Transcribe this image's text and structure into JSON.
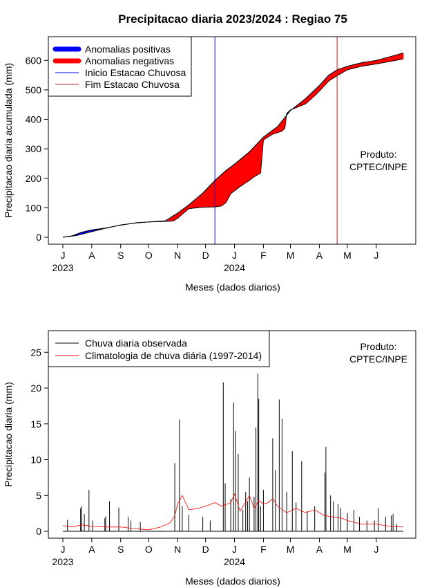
{
  "colors": {
    "positive": "#0000ff",
    "negative": "#ff0000",
    "start_line": "#0000ff",
    "end_line": "#b22222",
    "observed": "#000000",
    "climatology": "#ff0000"
  },
  "chart_data": [
    {
      "type": "area",
      "title": "Precipitacao diaria 2023/2024 : Regiao 75",
      "xlabel": "Meses (dados diarios)",
      "ylabel": "Precipitacao diaria acumulada (mm)",
      "x_unit": "days since 2023-07-01",
      "xlim": [
        0,
        365
      ],
      "ylim": [
        0,
        650
      ],
      "yticks": [
        0,
        100,
        200,
        300,
        400,
        500,
        600
      ],
      "month_ticks": [
        {
          "x": 0,
          "label": "J"
        },
        {
          "x": 31,
          "label": "A"
        },
        {
          "x": 62,
          "label": "S"
        },
        {
          "x": 92,
          "label": "O"
        },
        {
          "x": 123,
          "label": "N"
        },
        {
          "x": 153,
          "label": "D"
        },
        {
          "x": 184,
          "label": "J"
        },
        {
          "x": 215,
          "label": "F"
        },
        {
          "x": 244,
          "label": "M"
        },
        {
          "x": 275,
          "label": "A"
        },
        {
          "x": 305,
          "label": "M"
        },
        {
          "x": 336,
          "label": "J"
        }
      ],
      "year_labels": [
        {
          "x": 0,
          "label": "2023"
        },
        {
          "x": 184,
          "label": "2024"
        }
      ],
      "legend": [
        {
          "label": "Anomalias positivas",
          "style": "thick",
          "color": "#0000ff"
        },
        {
          "label": "Anomalias negativas",
          "style": "thick",
          "color": "#ff0000"
        },
        {
          "label": "Inicio Estacao Chuvosa",
          "style": "thin",
          "color": "#0000ff"
        },
        {
          "label": "Fim Estacao Chuvosa",
          "style": "thin",
          "color": "#b22222"
        }
      ],
      "legend_position": "top-left",
      "annotation": [
        "Produto:",
        "CPTEC/INPE"
      ],
      "vlines": [
        {
          "name": "start",
          "x": 163,
          "color": "#0000ff"
        },
        {
          "name": "end",
          "x": 294,
          "color": "#b22222"
        }
      ],
      "series": [
        {
          "name": "Climatologia acumulada",
          "points": [
            [
              0,
              0
            ],
            [
              15,
              6
            ],
            [
              31,
              19
            ],
            [
              45,
              30
            ],
            [
              62,
              42
            ],
            [
              80,
              49
            ],
            [
              92,
              52
            ],
            [
              110,
              56
            ],
            [
              123,
              82
            ],
            [
              135,
              110
            ],
            [
              150,
              150
            ],
            [
              163,
              193
            ],
            [
              175,
              227
            ],
            [
              184,
              248
            ],
            [
              200,
              290
            ],
            [
              215,
              340
            ],
            [
              230,
              375
            ],
            [
              244,
              430
            ],
            [
              260,
              470
            ],
            [
              275,
              515
            ],
            [
              285,
              550
            ],
            [
              294,
              568
            ],
            [
              305,
              580
            ],
            [
              320,
              592
            ],
            [
              336,
              600
            ],
            [
              350,
              612
            ],
            [
              365,
              625
            ]
          ]
        },
        {
          "name": "Observado acumulado",
          "points": [
            [
              0,
              0
            ],
            [
              10,
              5
            ],
            [
              20,
              17
            ],
            [
              31,
              25
            ],
            [
              45,
              31
            ],
            [
              62,
              41
            ],
            [
              80,
              50
            ],
            [
              92,
              52
            ],
            [
              110,
              54
            ],
            [
              118,
              55
            ],
            [
              123,
              64
            ],
            [
              128,
              78
            ],
            [
              135,
              97
            ],
            [
              150,
              102
            ],
            [
              163,
              103
            ],
            [
              170,
              106
            ],
            [
              175,
              118
            ],
            [
              180,
              148
            ],
            [
              190,
              172
            ],
            [
              200,
              193
            ],
            [
              205,
              205
            ],
            [
              212,
              218
            ],
            [
              215,
              330
            ],
            [
              225,
              350
            ],
            [
              235,
              360
            ],
            [
              238,
              370
            ],
            [
              240,
              420
            ],
            [
              244,
              432
            ],
            [
              260,
              452
            ],
            [
              270,
              480
            ],
            [
              275,
              496
            ],
            [
              285,
              530
            ],
            [
              294,
              548
            ],
            [
              305,
              568
            ],
            [
              320,
              580
            ],
            [
              336,
              588
            ],
            [
              350,
              596
            ],
            [
              365,
              605
            ]
          ]
        }
      ]
    },
    {
      "type": "line",
      "xlabel": "Meses (dados diarios)",
      "ylabel": "Precipitacao diaria (mm)",
      "x_unit": "days since 2023-07-01",
      "xlim": [
        0,
        365
      ],
      "ylim": [
        0,
        28
      ],
      "yticks": [
        0,
        5,
        10,
        15,
        20,
        25
      ],
      "month_ticks": [
        {
          "x": 0,
          "label": "J"
        },
        {
          "x": 31,
          "label": "A"
        },
        {
          "x": 62,
          "label": "S"
        },
        {
          "x": 92,
          "label": "O"
        },
        {
          "x": 123,
          "label": "N"
        },
        {
          "x": 153,
          "label": "D"
        },
        {
          "x": 184,
          "label": "J"
        },
        {
          "x": 215,
          "label": "F"
        },
        {
          "x": 244,
          "label": "M"
        },
        {
          "x": 275,
          "label": "A"
        },
        {
          "x": 305,
          "label": "M"
        },
        {
          "x": 336,
          "label": "J"
        }
      ],
      "year_labels": [
        {
          "x": 0,
          "label": "2023"
        },
        {
          "x": 184,
          "label": "2024"
        }
      ],
      "legend": [
        {
          "label": "Chuva diaria observada",
          "color": "#000000"
        },
        {
          "label": "Climatologia de chuva diária (1997-2014)",
          "color": "#ff0000"
        }
      ],
      "legend_position": "top-left",
      "annotation": [
        "Produto:",
        "CPTEC/INPE"
      ],
      "series": [
        {
          "name": "Chuva diaria observada",
          "style": "spikes",
          "points": [
            [
              5,
              1.6
            ],
            [
              19,
              3.2
            ],
            [
              20,
              3.5
            ],
            [
              23,
              2.4
            ],
            [
              28,
              5.8
            ],
            [
              32,
              1.5
            ],
            [
              45,
              1.8
            ],
            [
              46,
              2.1
            ],
            [
              50,
              4.2
            ],
            [
              60,
              3.3
            ],
            [
              70,
              2.0
            ],
            [
              73,
              1.5
            ],
            [
              83,
              1.3
            ],
            [
              120,
              9.5
            ],
            [
              125,
              15.6
            ],
            [
              128,
              3.5
            ],
            [
              135,
              2.3
            ],
            [
              150,
              2.0
            ],
            [
              158,
              1.5
            ],
            [
              172,
              20.8
            ],
            [
              174,
              6.7
            ],
            [
              180,
              4.5
            ],
            [
              183,
              18.0
            ],
            [
              185,
              14.0
            ],
            [
              188,
              10.8
            ],
            [
              193,
              3.0
            ],
            [
              196,
              5.5
            ],
            [
              198,
              4.2
            ],
            [
              200,
              7.5
            ],
            [
              205,
              4.8
            ],
            [
              207,
              14.5
            ],
            [
              209,
              22.0
            ],
            [
              210,
              18.5
            ],
            [
              212,
              3.5
            ],
            [
              215,
              5.8
            ],
            [
              225,
              13.0
            ],
            [
              228,
              8.5
            ],
            [
              232,
              18.4
            ],
            [
              235,
              15.7
            ],
            [
              240,
              5.5
            ],
            [
              246,
              11.2
            ],
            [
              250,
              4.0
            ],
            [
              256,
              9.8
            ],
            [
              262,
              2.8
            ],
            [
              270,
              3.5
            ],
            [
              281,
              8.2
            ],
            [
              282,
              11.8
            ],
            [
              287,
              5.0
            ],
            [
              290,
              4.2
            ],
            [
              295,
              3.8
            ],
            [
              298,
              3.2
            ],
            [
              305,
              2.5
            ],
            [
              312,
              3.0
            ],
            [
              318,
              2.0
            ],
            [
              326,
              1.5
            ],
            [
              334,
              1.5
            ],
            [
              338,
              3.2
            ],
            [
              346,
              2.0
            ],
            [
              352,
              2.2
            ],
            [
              354,
              2.4
            ],
            [
              358,
              1.0
            ]
          ]
        },
        {
          "name": "Climatologia de chuva diária (1997-2014)",
          "style": "line",
          "points": [
            [
              0,
              0.8
            ],
            [
              10,
              0.6
            ],
            [
              20,
              0.9
            ],
            [
              31,
              0.7
            ],
            [
              45,
              0.6
            ],
            [
              62,
              0.6
            ],
            [
              75,
              0.4
            ],
            [
              92,
              0.2
            ],
            [
              105,
              0.6
            ],
            [
              115,
              1.2
            ],
            [
              120,
              2.2
            ],
            [
              123,
              3.8
            ],
            [
              128,
              5.0
            ],
            [
              135,
              3.0
            ],
            [
              145,
              3.2
            ],
            [
              155,
              3.6
            ],
            [
              163,
              4.0
            ],
            [
              170,
              3.5
            ],
            [
              180,
              4.0
            ],
            [
              184,
              5.2
            ],
            [
              190,
              2.8
            ],
            [
              200,
              5.0
            ],
            [
              205,
              3.2
            ],
            [
              210,
              4.3
            ],
            [
              215,
              3.8
            ],
            [
              220,
              4.0
            ],
            [
              225,
              4.6
            ],
            [
              230,
              3.5
            ],
            [
              240,
              2.6
            ],
            [
              250,
              3.2
            ],
            [
              260,
              2.6
            ],
            [
              270,
              3.0
            ],
            [
              280,
              2.2
            ],
            [
              290,
              2.0
            ],
            [
              300,
              1.8
            ],
            [
              305,
              1.5
            ],
            [
              320,
              1.0
            ],
            [
              336,
              1.0
            ],
            [
              350,
              0.7
            ],
            [
              365,
              0.6
            ]
          ]
        }
      ]
    }
  ]
}
